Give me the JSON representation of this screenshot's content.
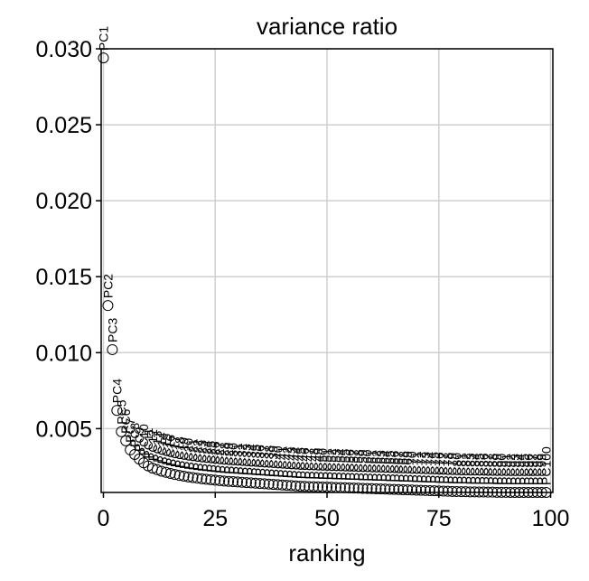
{
  "chart_data": {
    "type": "scatter",
    "title": "variance ratio",
    "xlabel": "ranking",
    "ylabel": "",
    "xlim": [
      -0.5,
      100.5
    ],
    "ylim": [
      0.0008,
      0.03
    ],
    "xticks": [
      0,
      25,
      50,
      75,
      100
    ],
    "xtick_labels": [
      "0",
      "25",
      "50",
      "75",
      "100"
    ],
    "yticks": [
      0.005,
      0.01,
      0.015,
      0.02,
      0.025,
      0.03
    ],
    "ytick_labels": [
      "0.005",
      "0.010",
      "0.015",
      "0.020",
      "0.025",
      "0.030"
    ],
    "grid": true,
    "marker": "open-circle",
    "point_labels_prefix": "PC",
    "values": [
      0.0294,
      0.0131,
      0.0102,
      0.0062,
      0.0048,
      0.0042,
      0.0036,
      0.0033,
      0.003,
      0.00275,
      0.00255,
      0.0024,
      0.0023,
      0.0022,
      0.00212,
      0.00205,
      0.00198,
      0.00192,
      0.00187,
      0.00182,
      0.00178,
      0.00174,
      0.0017,
      0.00167,
      0.00164,
      0.00161,
      0.00158,
      0.00155,
      0.00153,
      0.00151,
      0.00149,
      0.00147,
      0.00145,
      0.00143,
      0.00141,
      0.00139,
      0.00137,
      0.00135,
      0.00133,
      0.00131,
      0.00129,
      0.00127,
      0.00125,
      0.00123,
      0.00121,
      0.0012,
      0.00119,
      0.00118,
      0.00117,
      0.00116,
      0.00115,
      0.00114,
      0.00113,
      0.00112,
      0.00111,
      0.0011,
      0.00109,
      0.00108,
      0.00107,
      0.00106,
      0.00105,
      0.00104,
      0.00103,
      0.00102,
      0.00101,
      0.001,
      0.00099,
      0.00098,
      0.00097,
      0.00096,
      0.00095,
      0.00094,
      0.00093,
      0.00092,
      0.00091,
      0.0009,
      0.00089,
      0.00088,
      0.00087,
      0.00086,
      0.00085,
      0.00085,
      0.00084,
      0.00084,
      0.00083,
      0.00083,
      0.00082,
      0.00082,
      0.00081,
      0.00081,
      0.00081,
      0.0008,
      0.0008,
      0.0008,
      0.0008,
      0.0008,
      0.0008,
      0.0008,
      0.0008,
      0.0008
    ]
  }
}
